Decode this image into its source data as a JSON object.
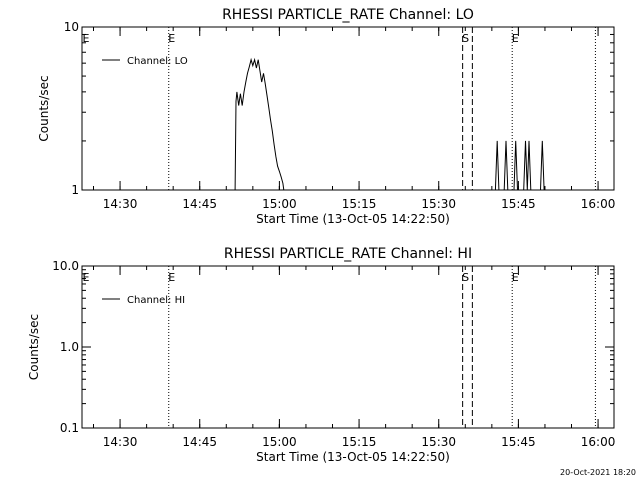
{
  "footer": {
    "timestamp": "20-Oct-2021 18:20"
  },
  "chart_data": [
    {
      "type": "line",
      "title": "RHESSI PARTICLE_RATE Channel: LO",
      "xlabel": "Start Time (13-Oct-05 14:22:50)",
      "ylabel": "Counts/sec",
      "y_scale": "log",
      "ylim": [
        1,
        10
      ],
      "xlim": [
        "14:22:50",
        "16:03:00"
      ],
      "x_ticks": [
        "14:30",
        "14:45",
        "15:00",
        "15:15",
        "15:30",
        "15:45",
        "16:00"
      ],
      "y_ticks": [
        "1",
        "10"
      ],
      "legend": {
        "entries": [
          "Channel: LO"
        ],
        "placement": "top-left"
      },
      "color": "#000000",
      "markers": [
        {
          "time": "14:39:10",
          "style": "dotted",
          "label": "E"
        },
        {
          "time": "15:34:30",
          "style": "dashed",
          "label": "S"
        },
        {
          "time": "15:36:20",
          "style": "dashed",
          "label": ""
        },
        {
          "time": "15:43:50",
          "style": "dotted",
          "label": "E"
        },
        {
          "time": "15:59:30",
          "style": "dotted",
          "label": ""
        }
      ],
      "edge_labels": [
        "E"
      ],
      "series": [
        {
          "name": "Channel: LO",
          "x": [
            "14:51:40",
            "14:51:50",
            "14:52:00",
            "14:52:20",
            "14:52:40",
            "14:53:00",
            "14:53:20",
            "14:53:40",
            "14:54:00",
            "14:54:20",
            "14:54:40",
            "14:55:00",
            "14:55:20",
            "14:55:40",
            "14:56:00",
            "14:56:20",
            "14:56:40",
            "14:57:00",
            "14:57:20",
            "14:57:40",
            "14:58:00",
            "14:58:20",
            "14:58:40",
            "14:59:00",
            "14:59:20",
            "14:59:40",
            "15:00:00",
            "15:00:20",
            "15:00:40",
            "15:00:50",
            "15:40:40",
            "15:41:00",
            "15:41:20",
            "15:42:20",
            "15:42:40",
            "15:43:00",
            "15:44:10",
            "15:44:30",
            "15:44:50",
            "15:46:00",
            "15:46:20",
            "15:46:40",
            "15:47:00",
            "15:47:20",
            "15:49:10",
            "15:49:30",
            "15:49:50"
          ],
          "y": [
            1.0,
            3.5,
            4.0,
            3.3,
            3.9,
            3.3,
            4.0,
            4.6,
            5.2,
            5.7,
            6.3,
            5.8,
            6.3,
            5.6,
            6.3,
            5.4,
            4.6,
            5.2,
            4.5,
            3.8,
            3.2,
            2.7,
            2.3,
            1.9,
            1.6,
            1.4,
            1.3,
            1.2,
            1.1,
            1.0,
            1.0,
            2.0,
            1.0,
            1.0,
            2.0,
            1.0,
            1.0,
            2.0,
            1.0,
            1.0,
            2.0,
            1.0,
            2.0,
            1.0,
            1.0,
            2.0,
            1.0
          ]
        }
      ]
    },
    {
      "type": "line",
      "title": "RHESSI PARTICLE_RATE Channel: HI",
      "xlabel": "Start Time (13-Oct-05 14:22:50)",
      "ylabel": "Counts/sec",
      "y_scale": "log",
      "ylim": [
        0.1,
        10
      ],
      "xlim": [
        "14:22:50",
        "16:03:00"
      ],
      "x_ticks": [
        "14:30",
        "14:45",
        "15:00",
        "15:15",
        "15:30",
        "15:45",
        "16:00"
      ],
      "y_ticks": [
        "0.1",
        "1.0",
        "10.0"
      ],
      "legend": {
        "entries": [
          "Channel: HI"
        ],
        "placement": "top-left"
      },
      "color": "#000000",
      "markers": [
        {
          "time": "14:39:10",
          "style": "dotted",
          "label": "E"
        },
        {
          "time": "15:34:30",
          "style": "dashed",
          "label": "S"
        },
        {
          "time": "15:36:20",
          "style": "dashed",
          "label": ""
        },
        {
          "time": "15:43:50",
          "style": "dotted",
          "label": "E"
        },
        {
          "time": "15:59:30",
          "style": "dotted",
          "label": ""
        }
      ],
      "edge_labels": [
        "E"
      ],
      "series": [
        {
          "name": "Channel: HI",
          "x": [],
          "y": []
        }
      ]
    }
  ]
}
